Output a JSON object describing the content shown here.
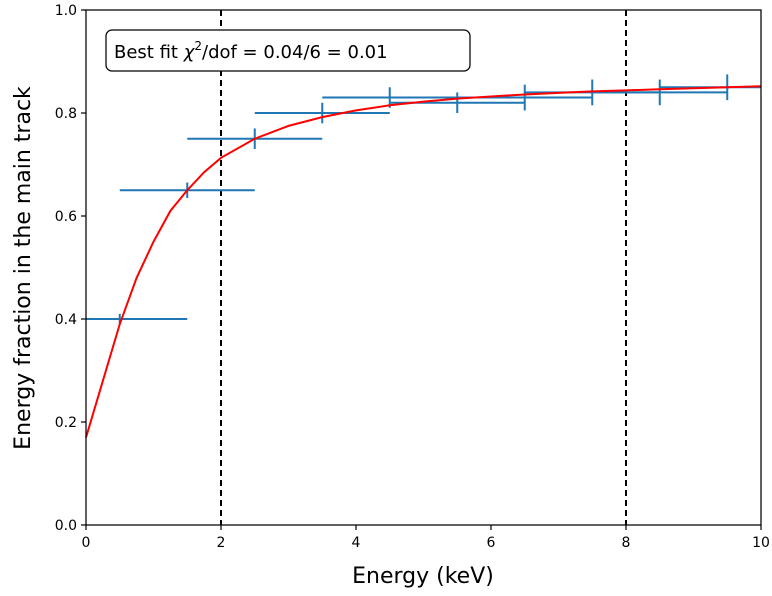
{
  "chart_data": {
    "type": "line",
    "title": "",
    "xlabel": "Energy (keV)",
    "ylabel": "Energy fraction in the main track",
    "xlim": [
      0,
      10
    ],
    "ylim": [
      0,
      1.0
    ],
    "xticks": [
      0,
      2,
      4,
      6,
      8,
      10
    ],
    "xtick_labels": [
      "0",
      "2",
      "4",
      "6",
      "8",
      "10"
    ],
    "yticks": [
      0.0,
      0.2,
      0.4,
      0.6,
      0.8,
      1.0
    ],
    "ytick_labels": [
      "0.0",
      "0.2",
      "0.4",
      "0.6",
      "0.8",
      "1.0"
    ],
    "grid": false,
    "annotation": {
      "prefix": "Best fit ",
      "symbol": "χ",
      "superscript": "2",
      "suffix": "/dof = 0.04/6 = 0.01"
    },
    "vertical_lines": [
      {
        "x": 2,
        "style": "dashed",
        "color": "#000000"
      },
      {
        "x": 8,
        "style": "dashed",
        "color": "#000000"
      }
    ],
    "series": [
      {
        "type": "errorbar",
        "color": "#1f77b4",
        "points": [
          {
            "x": 0.5,
            "y": 0.4,
            "xerr": 1.0,
            "yerr": 0.01
          },
          {
            "x": 1.5,
            "y": 0.65,
            "xerr": 1.0,
            "yerr": 0.015
          },
          {
            "x": 2.5,
            "y": 0.75,
            "xerr": 1.0,
            "yerr": 0.02
          },
          {
            "x": 3.5,
            "y": 0.8,
            "xerr": 1.0,
            "yerr": 0.02
          },
          {
            "x": 4.5,
            "y": 0.83,
            "xerr": 1.0,
            "yerr": 0.02
          },
          {
            "x": 5.5,
            "y": 0.82,
            "xerr": 1.0,
            "yerr": 0.02
          },
          {
            "x": 6.5,
            "y": 0.83,
            "xerr": 1.0,
            "yerr": 0.025
          },
          {
            "x": 7.5,
            "y": 0.84,
            "xerr": 1.0,
            "yerr": 0.025
          },
          {
            "x": 8.5,
            "y": 0.84,
            "xerr": 1.0,
            "yerr": 0.025
          },
          {
            "x": 9.5,
            "y": 0.85,
            "xerr": 1.0,
            "yerr": 0.025
          }
        ]
      },
      {
        "type": "curve",
        "color": "#ff0000",
        "points": [
          {
            "x": 0.0,
            "y": 0.17
          },
          {
            "x": 0.25,
            "y": 0.28
          },
          {
            "x": 0.5,
            "y": 0.39
          },
          {
            "x": 0.75,
            "y": 0.48
          },
          {
            "x": 1.0,
            "y": 0.55
          },
          {
            "x": 1.25,
            "y": 0.61
          },
          {
            "x": 1.5,
            "y": 0.65
          },
          {
            "x": 1.75,
            "y": 0.685
          },
          {
            "x": 2.0,
            "y": 0.713
          },
          {
            "x": 2.5,
            "y": 0.75
          },
          {
            "x": 3.0,
            "y": 0.775
          },
          {
            "x": 3.5,
            "y": 0.792
          },
          {
            "x": 4.0,
            "y": 0.805
          },
          {
            "x": 4.5,
            "y": 0.815
          },
          {
            "x": 5.0,
            "y": 0.822
          },
          {
            "x": 5.5,
            "y": 0.828
          },
          {
            "x": 6.0,
            "y": 0.832
          },
          {
            "x": 6.5,
            "y": 0.836
          },
          {
            "x": 7.0,
            "y": 0.839
          },
          {
            "x": 7.5,
            "y": 0.842
          },
          {
            "x": 8.0,
            "y": 0.844
          },
          {
            "x": 8.5,
            "y": 0.846
          },
          {
            "x": 9.0,
            "y": 0.848
          },
          {
            "x": 9.5,
            "y": 0.85
          },
          {
            "x": 10.0,
            "y": 0.852
          }
        ]
      }
    ]
  }
}
